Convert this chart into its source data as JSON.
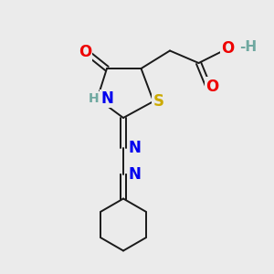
{
  "bg_color": "#ebebeb",
  "atom_colors": {
    "C": "#000000",
    "H": "#6fa8a0",
    "N": "#0000ee",
    "O": "#ee0000",
    "S": "#ccaa00"
  },
  "bond_color": "#1a1a1a",
  "bond_width": 1.4,
  "figsize": [
    3.0,
    3.0
  ],
  "dpi": 100,
  "xlim": [
    0,
    10
  ],
  "ylim": [
    0,
    10
  ]
}
